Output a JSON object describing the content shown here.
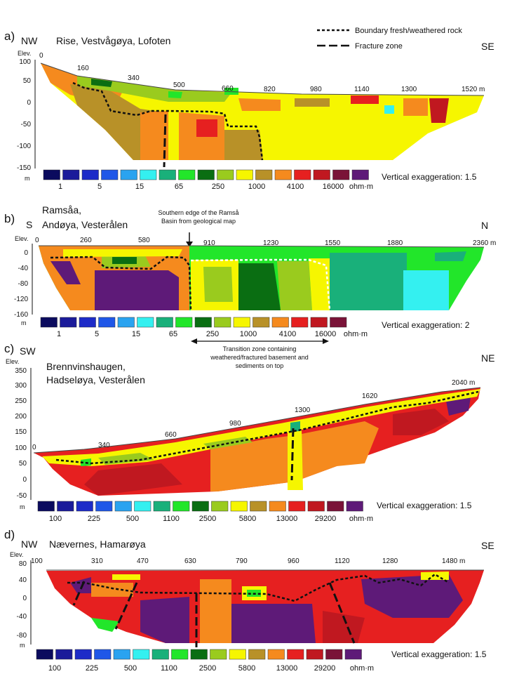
{
  "legend": {
    "boundary_label": "Boundary fresh/weathered rock",
    "fracture_label": "Fracture zone"
  },
  "colors": {
    "scale": [
      "#0b0b5e",
      "#1b1b9a",
      "#1d2bc8",
      "#1f57e8",
      "#2aa3f0",
      "#34f0f0",
      "#19b07a",
      "#22e62a",
      "#0a6e12",
      "#9acb1e",
      "#f6f600",
      "#b89128",
      "#f58a1e",
      "#e62020",
      "#c01820",
      "#7a1338",
      "#5e1a78"
    ]
  },
  "panels": [
    {
      "letter": "a)",
      "dir_left": "NW",
      "dir_right": "SE",
      "title_lines": [
        "Rise, Vestvågøya, Lofoten"
      ],
      "elev_label": "Elev.",
      "unit_label": "m",
      "y_ticks": [
        "100",
        "50",
        "0",
        "-50",
        "-100",
        "-150"
      ],
      "distance_labels": [
        "0",
        "160",
        "340",
        "500",
        "660",
        "820",
        "980",
        "1140",
        "1300",
        "1520 m"
      ],
      "scale_values": [
        "1",
        "5",
        "15",
        "65",
        "250",
        "1000",
        "4100",
        "16000"
      ],
      "scale_unit": "ohm·m",
      "exaggeration": "Vertical exaggeration: 1.5"
    },
    {
      "letter": "b)",
      "dir_left": "S",
      "dir_right": "N",
      "title_lines": [
        "Ramsåa,",
        "Andøya, Vesterålen"
      ],
      "elev_label": "Elev.",
      "unit_label": "m",
      "y_ticks": [
        "0",
        "-40",
        "-80",
        "-120",
        "-160"
      ],
      "distance_labels": [
        "0",
        "260",
        "580",
        "910",
        "1230",
        "1550",
        "1880",
        "2360 m"
      ],
      "scale_values": [
        "1",
        "5",
        "15",
        "65",
        "250",
        "1000",
        "4100",
        "16000"
      ],
      "scale_unit": "ohm·m",
      "exaggeration": "Vertical exaggeration: 2",
      "annotation_top": [
        "Southern  edge of the Ramså",
        "Basin from geological map"
      ],
      "annotation_bottom": [
        "Transition zone containing",
        "weathered/fractured basement and",
        "sediments on top"
      ]
    },
    {
      "letter": "c)",
      "dir_left": "SW",
      "dir_right": "NE",
      "title_lines": [
        "Brennvinshaugen,",
        "Hadseløya, Vesterålen"
      ],
      "elev_label": "Elev.",
      "unit_label": "m",
      "y_ticks": [
        "350",
        "300",
        "250",
        "200",
        "150",
        "100",
        "50",
        "0",
        "-50"
      ],
      "distance_labels": [
        "0",
        "340",
        "660",
        "980",
        "1300",
        "1620",
        "2040 m"
      ],
      "scale_values": [
        "100",
        "225",
        "500",
        "1100",
        "2500",
        "5800",
        "13000",
        "29200"
      ],
      "scale_unit": "ohm·m",
      "exaggeration": "Vertical exaggeration: 1.5"
    },
    {
      "letter": "d)",
      "dir_left": "NW",
      "dir_right": "SE",
      "title_lines": [
        "Nævernes, Hamarøya"
      ],
      "elev_label": "Elev.",
      "unit_label": "m",
      "y_ticks": [
        "80",
        "40",
        "0",
        "-40",
        "-80"
      ],
      "distance_labels": [
        "100",
        "310",
        "470",
        "630",
        "790",
        "960",
        "1120",
        "1280",
        "1480 m"
      ],
      "scale_values": [
        "100",
        "225",
        "500",
        "1100",
        "2500",
        "5800",
        "13000",
        "29200"
      ],
      "scale_unit": "ohm·m",
      "exaggeration": "Vertical exaggeration: 1.5"
    }
  ]
}
